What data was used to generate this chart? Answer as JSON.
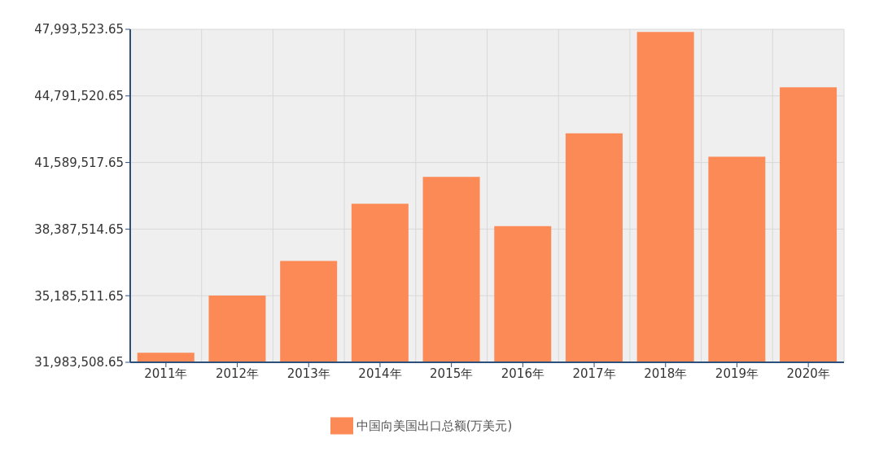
{
  "chart_data": {
    "type": "bar",
    "categories": [
      "2011年",
      "2012年",
      "2013年",
      "2014年",
      "2015年",
      "2016年",
      "2017年",
      "2018年",
      "2019年",
      "2020年"
    ],
    "series": [
      {
        "name": "中国向美国出口总额(万美元)",
        "color": "#fc8a56",
        "values": [
          32440000,
          35190000,
          36860000,
          39610000,
          40900000,
          38530000,
          42990000,
          47870000,
          41870000,
          45200000
        ]
      }
    ],
    "ylim": [
      31983508.65,
      47993523.65
    ],
    "yticks": [
      {
        "value": 31983508.65,
        "label": "31,983,508.65"
      },
      {
        "value": 35185511.65,
        "label": "35,185,511.65"
      },
      {
        "value": 38387514.65,
        "label": "38,387,514.65"
      },
      {
        "value": 41589517.65,
        "label": "41,589,517.65"
      },
      {
        "value": 44791520.65,
        "label": "44,791,520.65"
      },
      {
        "value": 47993523.65,
        "label": "47,993,523.65"
      }
    ],
    "grid": true,
    "legend": "bottom"
  }
}
